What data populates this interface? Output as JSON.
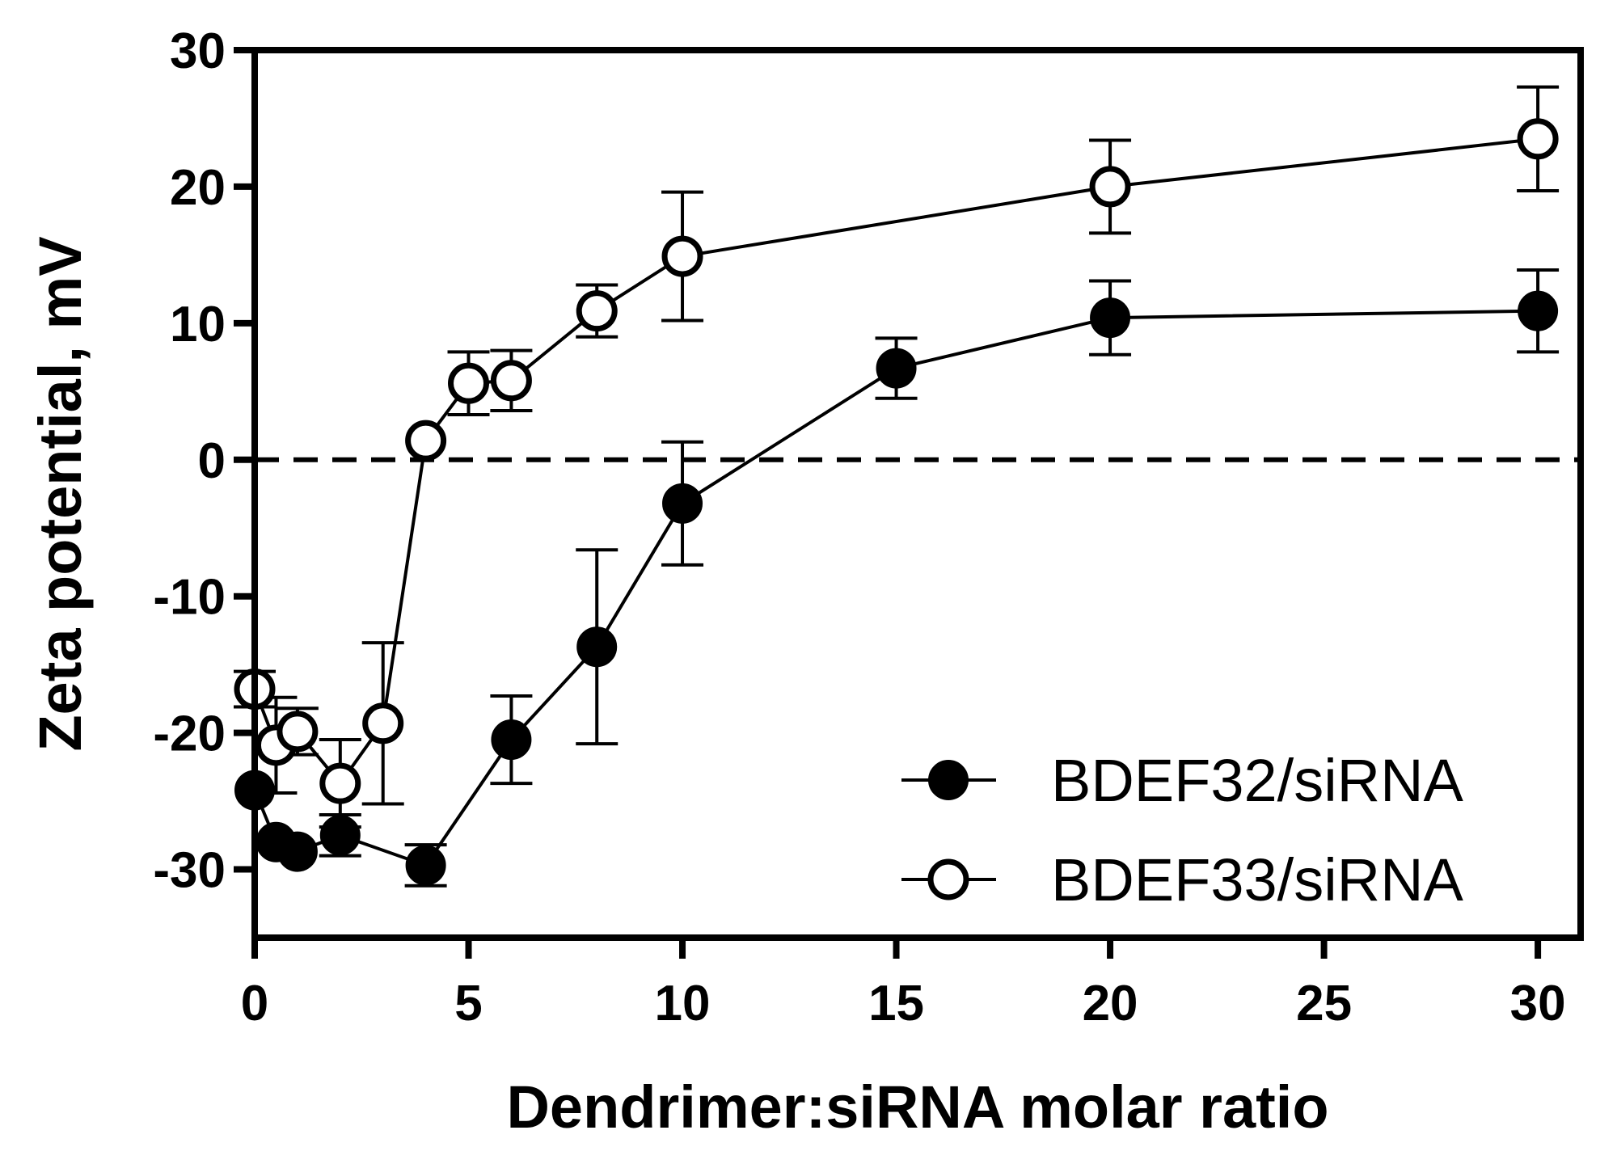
{
  "chart_data": {
    "type": "line",
    "title": "",
    "xlabel": "Dendrimer:siRNA molar ratio",
    "ylabel": "Zeta potential, mV",
    "xlim": [
      0,
      31
    ],
    "ylim": [
      -35,
      30
    ],
    "xticks": [
      0,
      5,
      10,
      15,
      20,
      25,
      30
    ],
    "yticks": [
      -30,
      -20,
      -10,
      0,
      10,
      20,
      30
    ],
    "xtick_labels": [
      "0",
      "5",
      "10",
      "15",
      "20",
      "25",
      "30"
    ],
    "ytick_labels": [
      "-30",
      "-20",
      "-10",
      "0",
      "10",
      "20",
      "30"
    ],
    "reference_line": {
      "y": 0,
      "style": "dashed"
    },
    "grid": false,
    "legend_position": "bottom-right",
    "series": [
      {
        "name": "BDEF32/siRNA",
        "marker": "filled-circle",
        "x": [
          0,
          0.5,
          1,
          2,
          4,
          6,
          8,
          10,
          15,
          20,
          30
        ],
        "y": [
          -24.2,
          -28,
          -28.7,
          -27.5,
          -29.7,
          -20.5,
          -13.7,
          -3.2,
          6.7,
          10.4,
          10.9
        ],
        "error": [
          0,
          0,
          0,
          1.5,
          1.5,
          3.2,
          7.1,
          4.5,
          2.2,
          2.7,
          3.0
        ]
      },
      {
        "name": "BDEF33/siRNA",
        "marker": "open-circle",
        "x": [
          0,
          0.5,
          1,
          2,
          3,
          4,
          5,
          6,
          8,
          10,
          20,
          30
        ],
        "y": [
          -16.8,
          -20.9,
          -19.9,
          -23.7,
          -19.3,
          1.4,
          5.6,
          5.8,
          10.9,
          14.9,
          20.0,
          23.5
        ],
        "error": [
          1.3,
          3.5,
          1.7,
          3.2,
          5.9,
          0,
          2.3,
          2.2,
          1.9,
          4.7,
          3.4,
          3.8
        ]
      }
    ]
  }
}
